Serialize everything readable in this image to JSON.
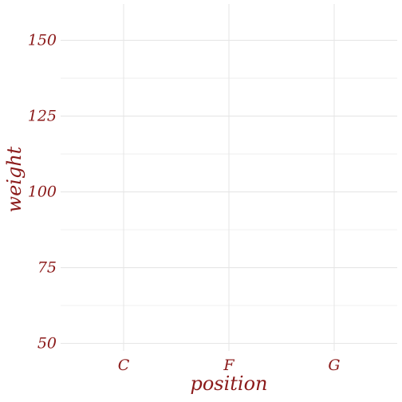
{
  "chart_data": {
    "type": "scatter",
    "title": "",
    "xlabel": "position",
    "ylabel": "weight",
    "categories": [
      "C",
      "F",
      "G"
    ],
    "y_ticks": [
      50,
      75,
      100,
      125,
      150
    ],
    "ylim": [
      47.5,
      162
    ],
    "grid": true,
    "series": [],
    "colors": {
      "text": "#8b1a1a",
      "grid_major": "#e6e6e6",
      "grid_minor": "#eeeeee",
      "background": "#ffffff"
    }
  }
}
